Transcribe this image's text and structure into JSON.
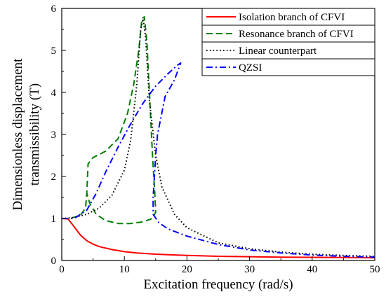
{
  "chart_data": {
    "type": "line",
    "title": "",
    "xlabel": "Excitation frequency (rad/s)",
    "ylabel_line1": "Dimensionless displacement",
    "ylabel_line2": "transmissibility (T)",
    "xlim": [
      0,
      50
    ],
    "ylim": [
      0,
      6
    ],
    "xticks": [
      "0",
      "10",
      "20",
      "30",
      "40",
      "50"
    ],
    "yticks": [
      "0",
      "1",
      "2",
      "3",
      "4",
      "5",
      "6"
    ],
    "grid": false,
    "legend_position": "top-right",
    "series": [
      {
        "name": "Isolation branch of CFVI",
        "color": "#ff0000",
        "style": "solid",
        "points": [
          [
            0,
            1.0
          ],
          [
            1,
            0.99
          ],
          [
            2,
            0.8
          ],
          [
            3,
            0.6
          ],
          [
            4,
            0.47
          ],
          [
            5,
            0.39
          ],
          [
            6,
            0.33
          ],
          [
            8,
            0.26
          ],
          [
            10,
            0.21
          ],
          [
            12,
            0.18
          ],
          [
            15,
            0.15
          ],
          [
            20,
            0.12
          ],
          [
            25,
            0.1
          ],
          [
            30,
            0.09
          ],
          [
            35,
            0.08
          ],
          [
            40,
            0.075
          ],
          [
            45,
            0.07
          ],
          [
            50,
            0.065
          ]
        ]
      },
      {
        "name": "Resonance branch of CFVI",
        "color": "#008000",
        "style": "dashed",
        "points": [
          [
            0,
            1.0
          ],
          [
            1,
            1.0
          ],
          [
            2,
            1.03
          ],
          [
            3,
            1.08
          ],
          [
            3.8,
            1.25
          ],
          [
            4.0,
            1.6
          ],
          [
            4.2,
            2.3
          ],
          [
            5,
            2.45
          ],
          [
            7,
            2.6
          ],
          [
            9,
            2.9
          ],
          [
            10.5,
            3.5
          ],
          [
            11.5,
            4.2
          ],
          [
            12.3,
            5.0
          ],
          [
            12.8,
            5.75
          ],
          [
            13.2,
            5.8
          ],
          [
            13.6,
            5.2
          ],
          [
            14.0,
            4.0
          ],
          [
            14.5,
            2.5
          ],
          [
            14.9,
            1.5
          ],
          [
            15,
            1.15
          ],
          [
            14.5,
            1.0
          ],
          [
            13,
            0.92
          ],
          [
            11,
            0.88
          ],
          [
            9,
            0.88
          ],
          [
            7,
            0.95
          ],
          [
            5.5,
            1.1
          ],
          [
            4.5,
            1.35
          ],
          [
            4.0,
            1.6
          ]
        ]
      },
      {
        "name": "Linear counterpart",
        "color": "#000000",
        "style": "dotted",
        "points": [
          [
            0,
            1.0
          ],
          [
            2,
            1.02
          ],
          [
            4,
            1.1
          ],
          [
            6,
            1.25
          ],
          [
            8,
            1.55
          ],
          [
            10,
            2.15
          ],
          [
            11,
            2.85
          ],
          [
            12,
            4.2
          ],
          [
            12.6,
            5.5
          ],
          [
            13,
            5.75
          ],
          [
            13.4,
            5.3
          ],
          [
            14,
            3.8
          ],
          [
            15,
            2.5
          ],
          [
            16,
            1.75
          ],
          [
            18,
            1.1
          ],
          [
            20,
            0.78
          ],
          [
            25,
            0.42
          ],
          [
            30,
            0.28
          ],
          [
            35,
            0.2
          ],
          [
            40,
            0.15
          ],
          [
            45,
            0.12
          ],
          [
            50,
            0.1
          ]
        ]
      },
      {
        "name": "QZSI",
        "color": "#0000ff",
        "style": "dashdot",
        "points": [
          [
            0,
            1.0
          ],
          [
            2,
            1.0
          ],
          [
            4,
            1.2
          ],
          [
            5.5,
            1.6
          ],
          [
            7,
            2.1
          ],
          [
            9,
            2.7
          ],
          [
            11,
            3.25
          ],
          [
            13,
            3.75
          ],
          [
            15,
            4.15
          ],
          [
            17,
            4.45
          ],
          [
            18.5,
            4.65
          ],
          [
            19,
            4.7
          ],
          [
            18,
            4.3
          ],
          [
            16.5,
            3.9
          ],
          [
            15.3,
            3.0
          ],
          [
            15,
            2.5
          ],
          [
            14.8,
            2.0
          ],
          [
            14.6,
            1.5
          ],
          [
            14.6,
            1.1
          ],
          [
            15.5,
            0.9
          ],
          [
            17,
            0.75
          ],
          [
            20,
            0.58
          ],
          [
            25,
            0.38
          ],
          [
            30,
            0.25
          ],
          [
            35,
            0.18
          ],
          [
            40,
            0.13
          ],
          [
            45,
            0.1
          ],
          [
            50,
            0.08
          ]
        ]
      }
    ]
  }
}
